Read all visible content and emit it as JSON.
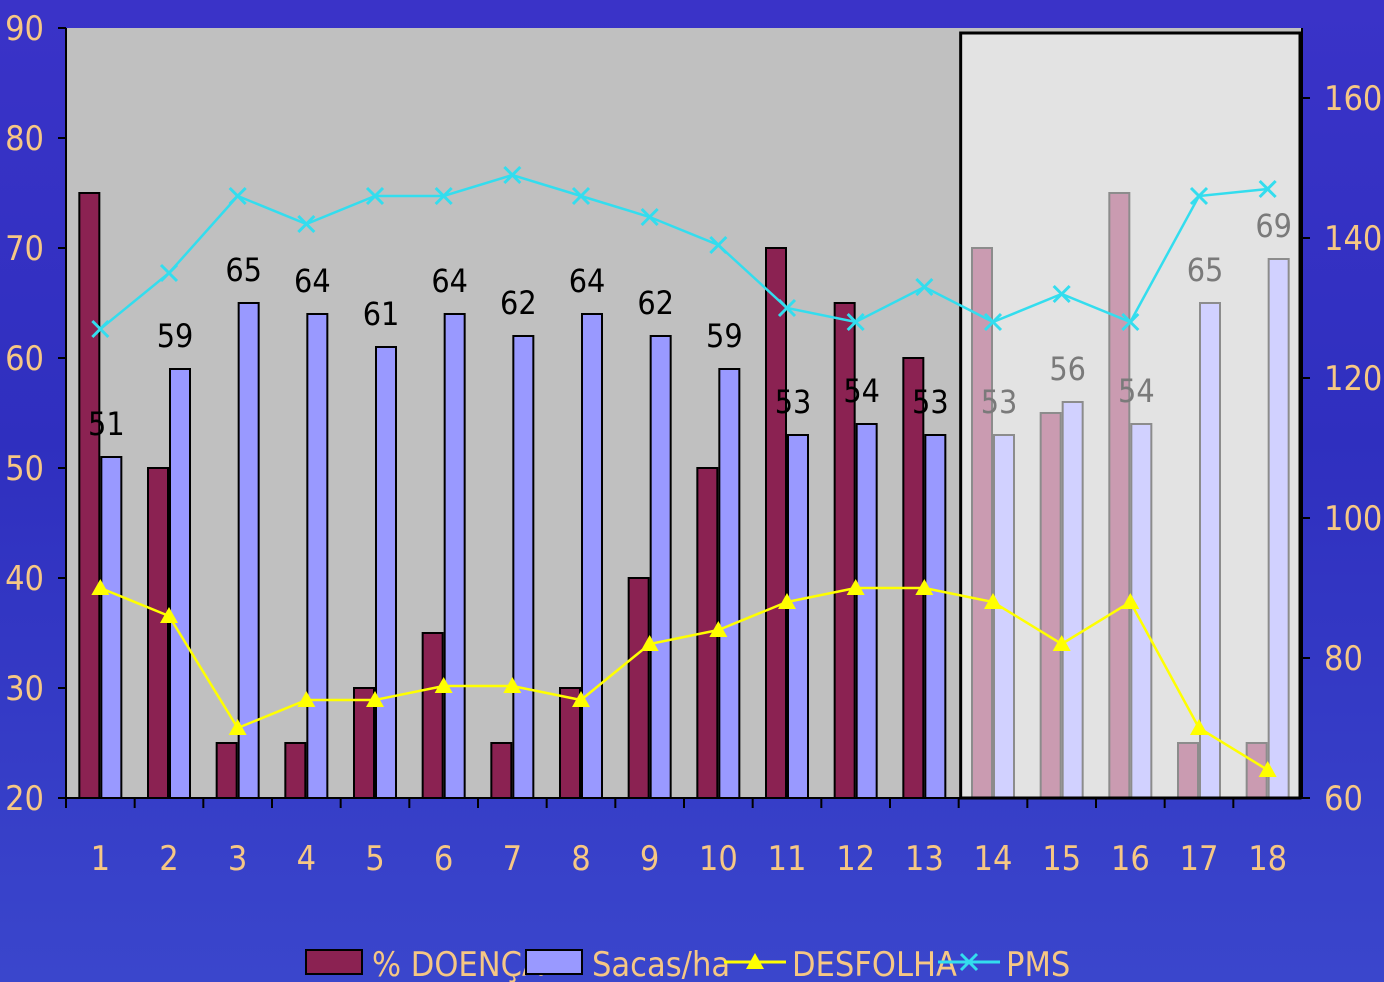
{
  "chart_data": {
    "type": "bar",
    "categories": [
      "1",
      "2",
      "3",
      "4",
      "5",
      "6",
      "7",
      "8",
      "9",
      "10",
      "11",
      "12",
      "13",
      "14",
      "15",
      "16",
      "17",
      "18"
    ],
    "series": [
      {
        "name": "% DOENÇA",
        "kind": "bar",
        "axis": "left",
        "values": [
          75,
          50,
          25,
          25,
          30,
          35,
          25,
          30,
          40,
          50,
          70,
          65,
          60,
          70,
          55,
          75,
          25,
          25
        ],
        "color": "#8b2252"
      },
      {
        "name": "Sacas/ha",
        "kind": "bar",
        "axis": "left",
        "values": [
          51,
          59,
          65,
          64,
          61,
          64,
          62,
          64,
          62,
          59,
          53,
          54,
          53,
          53,
          56,
          54,
          65,
          69
        ],
        "color": "#9999ff",
        "data_labels": [
          "51",
          "59",
          "65",
          "64",
          "61",
          "64",
          "62",
          "64",
          "62",
          "59",
          "53",
          "54",
          "53",
          "53",
          "56",
          "54",
          "65",
          "69"
        ]
      },
      {
        "name": "DESFOLHA",
        "kind": "line",
        "axis": "right",
        "marker": "triangle",
        "values": [
          90,
          86,
          70,
          74,
          74,
          76,
          76,
          74,
          82,
          84,
          88,
          90,
          90,
          88,
          82,
          88,
          70,
          64
        ],
        "color": "#ffff00"
      },
      {
        "name": "PMS",
        "kind": "line",
        "axis": "right",
        "marker": "x",
        "values": [
          127,
          135,
          146,
          142,
          146,
          146,
          149,
          146,
          143,
          139,
          130,
          128,
          133,
          128,
          132,
          128,
          146,
          147
        ],
        "color": "#33ddee"
      }
    ],
    "ylim": [
      20,
      90
    ],
    "yticks": [
      "20",
      "30",
      "40",
      "50",
      "60",
      "70",
      "80",
      "90"
    ],
    "y2lim": [
      60,
      170
    ],
    "y2ticks": [
      "60",
      "80",
      "100",
      "120",
      "140",
      "160"
    ],
    "highlight_from_category": "14",
    "legend_position": "bottom",
    "grid": false
  }
}
